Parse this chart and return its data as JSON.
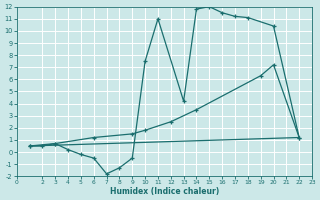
{
  "xlabel": "Humidex (Indice chaleur)",
  "ylabel": "",
  "bg_color": "#cce8e8",
  "grid_color": "#b8d8d8",
  "line_color": "#1a6e6e",
  "xlim": [
    0,
    23
  ],
  "ylim": [
    -2,
    12
  ],
  "xticks": [
    0,
    2,
    3,
    4,
    5,
    6,
    7,
    8,
    9,
    10,
    11,
    12,
    13,
    14,
    15,
    16,
    17,
    18,
    19,
    20,
    21,
    22,
    23
  ],
  "yticks": [
    -2,
    -1,
    0,
    1,
    2,
    3,
    4,
    5,
    6,
    7,
    8,
    9,
    10,
    11,
    12
  ],
  "line1_x": [
    1,
    2,
    3,
    4,
    5,
    6,
    7,
    8,
    9,
    10,
    11,
    13,
    14,
    15,
    16,
    17,
    18,
    20,
    22
  ],
  "line1_y": [
    0.5,
    0.5,
    0.7,
    0.2,
    -0.2,
    -0.5,
    -1.8,
    -1.3,
    -0.5,
    7.5,
    11.0,
    4.2,
    11.8,
    12.0,
    11.5,
    11.2,
    11.1,
    10.4,
    1.2
  ],
  "line2_x": [
    1,
    22
  ],
  "line2_y": [
    0.5,
    1.2
  ],
  "line3_x": [
    1,
    3,
    6,
    9,
    10,
    12,
    14,
    19,
    20,
    22
  ],
  "line3_y": [
    0.5,
    0.7,
    1.2,
    1.5,
    1.8,
    2.5,
    3.5,
    6.3,
    7.2,
    1.2
  ]
}
